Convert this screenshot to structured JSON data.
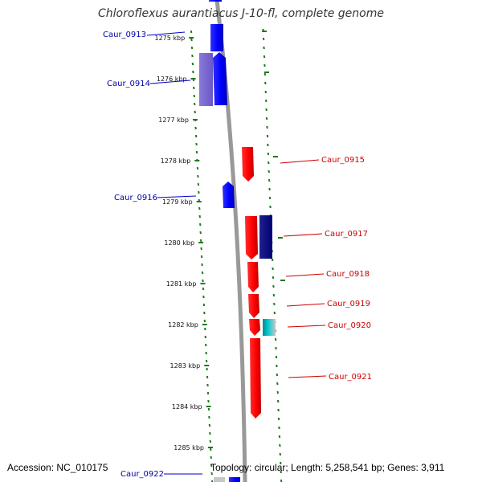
{
  "title": "Chloroflexus aurantiacus J-10-fl, complete genome",
  "footer": {
    "accession": "Accession: NC_010175",
    "summary": "Topology: circular; Length: 5,258,541 bp; Genes: 3,911"
  },
  "colors": {
    "forward_strand": "#0000ff",
    "reverse_strand": "#ff0000",
    "tick": "#1e7a1e",
    "backbone": "#999999"
  },
  "ticks": [
    {
      "label": "1275 kbp",
      "kbp": 1275
    },
    {
      "label": "1276 kbp",
      "kbp": 1276
    },
    {
      "label": "1277 kbp",
      "kbp": 1277
    },
    {
      "label": "1278 kbp",
      "kbp": 1278
    },
    {
      "label": "1279 kbp",
      "kbp": 1279
    },
    {
      "label": "1280 kbp",
      "kbp": 1280
    },
    {
      "label": "1281 kbp",
      "kbp": 1281
    },
    {
      "label": "1282 kbp",
      "kbp": 1282
    },
    {
      "label": "1283 kbp",
      "kbp": 1283
    },
    {
      "label": "1284 kbp",
      "kbp": 1284
    },
    {
      "label": "1285 kbp",
      "kbp": 1285
    }
  ],
  "genes": [
    {
      "name": "Caur_0913",
      "strand": "forward"
    },
    {
      "name": "Caur_0914",
      "strand": "forward"
    },
    {
      "name": "Caur_0915",
      "strand": "reverse"
    },
    {
      "name": "Caur_0916",
      "strand": "forward"
    },
    {
      "name": "Caur_0917",
      "strand": "reverse"
    },
    {
      "name": "Caur_0918",
      "strand": "reverse"
    },
    {
      "name": "Caur_0919",
      "strand": "reverse"
    },
    {
      "name": "Caur_0920",
      "strand": "reverse"
    },
    {
      "name": "Caur_0921",
      "strand": "reverse"
    },
    {
      "name": "Caur_0922",
      "strand": "forward"
    }
  ]
}
